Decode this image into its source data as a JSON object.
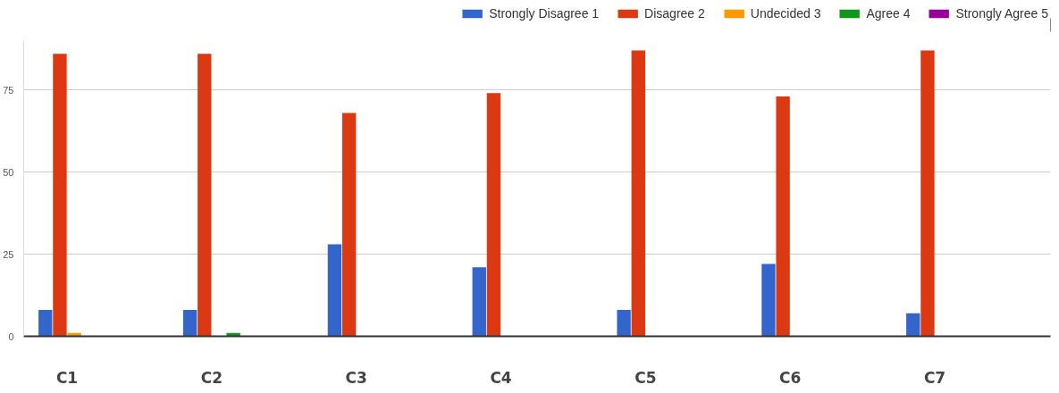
{
  "chart_data": {
    "type": "bar",
    "categories": [
      "C1",
      "C2",
      "C3",
      "C4",
      "C5",
      "C6",
      "C7"
    ],
    "series": [
      {
        "name": "Strongly Disagree 1",
        "color": "#3366cc",
        "values": [
          8,
          8,
          28,
          21,
          8,
          22,
          7
        ]
      },
      {
        "name": "Disagree 2",
        "color": "#dc3912",
        "values": [
          86,
          86,
          68,
          74,
          87,
          73,
          87
        ]
      },
      {
        "name": "Undecided 3",
        "color": "#ff9900",
        "values": [
          1,
          0,
          0,
          0,
          0,
          0,
          0
        ]
      },
      {
        "name": "Agree 4",
        "color": "#109618",
        "values": [
          0,
          1,
          0,
          0,
          0,
          0,
          0
        ]
      },
      {
        "name": "Strongly Agree 5",
        "color": "#990099",
        "values": [
          0,
          0,
          0,
          0,
          0,
          0,
          0
        ]
      }
    ],
    "ylim": [
      0,
      90
    ],
    "yticks": [
      0,
      25,
      50,
      75
    ],
    "grid": "y",
    "legend": "top"
  }
}
